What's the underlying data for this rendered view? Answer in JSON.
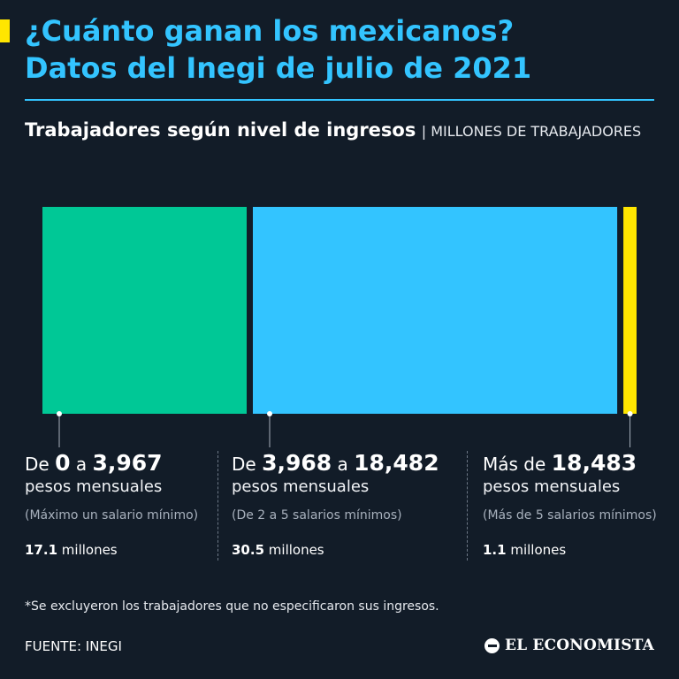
{
  "header": {
    "title_line1": "¿Cuánto ganan los mexicanos?",
    "title_line2": "Datos del Inegi de julio de 2021",
    "subtitle": "Trabajadores según nivel de ingresos",
    "subtitle_unit": "| MILLONES DE TRABAJADORES"
  },
  "colors": {
    "background": "#121c28",
    "title": "#33c4ff",
    "accent": "#ffe600"
  },
  "chart_data": {
    "type": "bar",
    "orientation": "stacked-horizontal-proportional",
    "categories": [
      "De 0 a 3,967 pesos mensuales",
      "De 3,968 a 18,482 pesos mensuales",
      "Más de 18,483 pesos mensuales"
    ],
    "values": [
      17.1,
      30.5,
      1.1
    ],
    "colors": [
      "#00c896",
      "#33c4ff",
      "#ffe600"
    ],
    "title": "Trabajadores según nivel de ingresos",
    "ylabel": "MILLONES DE TRABAJADORES",
    "legend": "bottom"
  },
  "categories_text": [
    {
      "prefix": "De ",
      "from": "0",
      "mid": " a ",
      "to": "3,967",
      "unit": "pesos mensuales",
      "note": "(Máximo un salario mínimo)",
      "value": "17.1",
      "value_unit": " millones"
    },
    {
      "prefix": "De ",
      "from": "3,968",
      "mid": " a ",
      "to": "18,482",
      "unit": "pesos mensuales",
      "note": "(De 2 a 5 salarios mínimos)",
      "value": "30.5",
      "value_unit": "  millones"
    },
    {
      "prefix": "Más de ",
      "from": "18,483",
      "mid": "",
      "to": "",
      "unit": "pesos mensuales",
      "note": "(Más de 5 salarios mínimos)",
      "value": "1.1",
      "value_unit": " millones"
    }
  ],
  "footer": {
    "footnote": "*Se excluyeron los trabajadores que no especificaron sus ingresos.",
    "source": "FUENTE: INEGI",
    "logo_icon": "el-economista-logo-icon",
    "logo_text": "EL ECONOMISTA"
  }
}
